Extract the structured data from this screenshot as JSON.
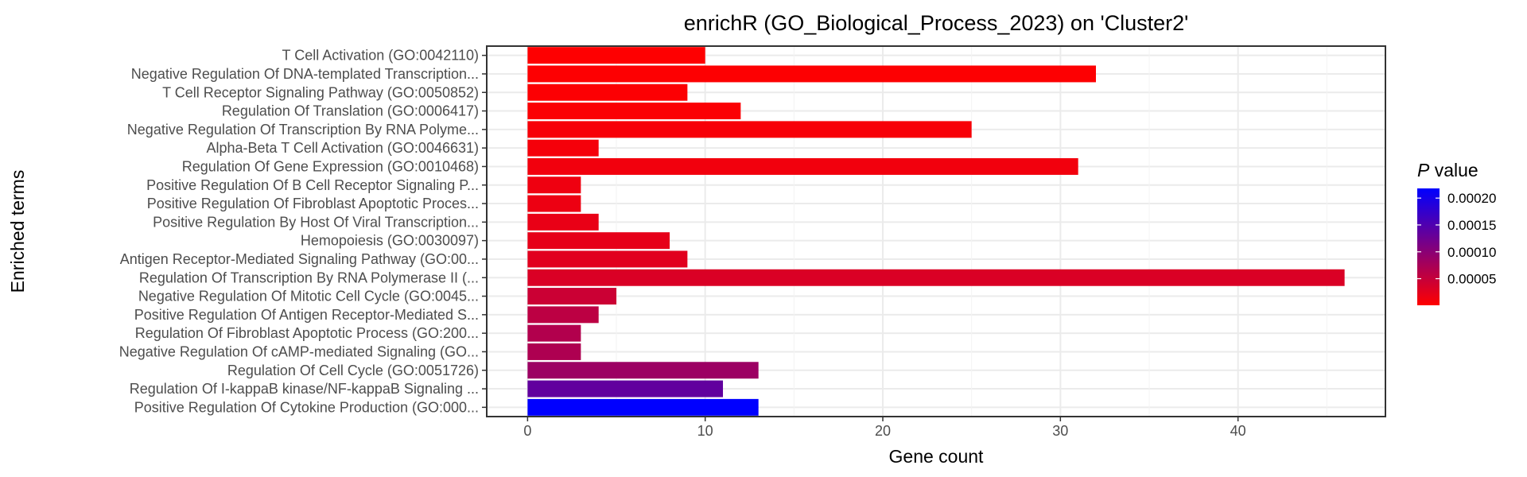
{
  "chart_data": {
    "type": "bar",
    "orientation": "horizontal",
    "title": "enrichR (GO_Biological_Process_2023) on 'Cluster2'",
    "xlabel": "Gene count",
    "ylabel": "Enriched terms",
    "xlim": [
      -2.3,
      48.3
    ],
    "x_ticks": [
      0,
      10,
      20,
      30,
      40
    ],
    "grid": true,
    "legend_placement": "right",
    "legend": {
      "title_italic": "P",
      "title_rest": " value",
      "min": 5e-07,
      "max": 0.000218,
      "ticks": [
        5e-05,
        0.0001,
        0.00015,
        0.0002
      ],
      "tick_labels": [
        "0.00005",
        "0.00010",
        "0.00015",
        "0.00020"
      ],
      "color_low": "#ff0000",
      "color_high": "#0000ff"
    },
    "categories": [
      "T Cell Activation (GO:0042110)",
      "Negative Regulation Of DNA-templated Transcription...",
      "T Cell Receptor Signaling Pathway (GO:0050852)",
      "Regulation Of Translation (GO:0006417)",
      "Negative Regulation Of Transcription By RNA Polyme...",
      "Alpha-Beta T Cell Activation (GO:0046631)",
      "Regulation Of Gene Expression (GO:0010468)",
      "Positive Regulation Of B Cell Receptor Signaling P...",
      "Positive Regulation Of Fibroblast Apoptotic Proces...",
      "Positive Regulation By Host Of Viral Transcription...",
      "Hemopoiesis (GO:0030097)",
      "Antigen Receptor-Mediated Signaling Pathway (GO:00...",
      "Regulation Of Transcription By RNA Polymerase II (...",
      "Negative Regulation Of Mitotic Cell Cycle (GO:0045...",
      "Positive Regulation Of Antigen Receptor-Mediated S...",
      "Regulation Of Fibroblast Apoptotic Process (GO:200...",
      "Negative Regulation Of cAMP-mediated Signaling (GO...",
      "Regulation Of Cell Cycle (GO:0051726)",
      "Regulation Of I-kappaB kinase/NF-kappaB Signaling ...",
      "Positive Regulation Of Cytokine Production (GO:000..."
    ],
    "values": [
      10,
      32,
      9,
      12,
      25,
      4,
      31,
      3,
      3,
      4,
      8,
      9,
      46,
      5,
      4,
      3,
      3,
      13,
      11,
      13
    ],
    "p_values": [
      1e-06,
      2e-06,
      3e-06,
      4e-06,
      7e-06,
      9e-06,
      1.2e-05,
      1.4e-05,
      1.6e-05,
      1.9e-05,
      2.2e-05,
      2.6e-05,
      3.2e-05,
      4.5e-05,
      5.8e-05,
      6.6e-05,
      7e-05,
      8.5e-05,
      0.000135,
      0.000218
    ]
  }
}
